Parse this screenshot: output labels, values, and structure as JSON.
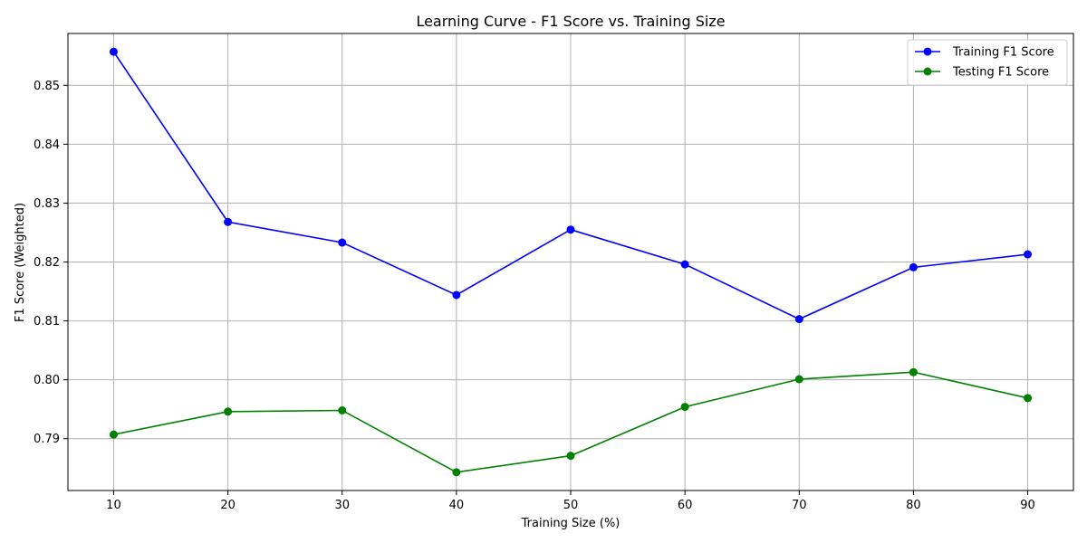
{
  "chart_data": {
    "type": "line",
    "title": "Learning Curve - F1 Score vs. Training Size",
    "xlabel": "Training Size (%)",
    "ylabel": "F1 Score (Weighted)",
    "x": [
      10,
      20,
      30,
      40,
      50,
      60,
      70,
      80,
      90
    ],
    "xticks": [
      10,
      20,
      30,
      40,
      50,
      60,
      70,
      80,
      90
    ],
    "yticks": [
      0.79,
      0.8,
      0.81,
      0.82,
      0.83,
      0.84,
      0.85
    ],
    "ytick_labels": [
      "0.79",
      "0.80",
      "0.81",
      "0.82",
      "0.83",
      "0.84",
      "0.85"
    ],
    "xlim": [
      6,
      94
    ],
    "ylim": [
      0.7812,
      0.8588
    ],
    "grid": true,
    "legend_position": "top-right",
    "series": [
      {
        "name": "Training F1 Score",
        "color": "#0000ff",
        "values": [
          0.8557,
          0.8268,
          0.8233,
          0.8144,
          0.8255,
          0.8196,
          0.8103,
          0.8191,
          0.8213
        ]
      },
      {
        "name": "Testing F1 Score",
        "color": "#008000",
        "values": [
          0.7907,
          0.7946,
          0.7948,
          0.7843,
          0.7871,
          0.7954,
          0.8001,
          0.8013,
          0.7969
        ]
      }
    ]
  }
}
